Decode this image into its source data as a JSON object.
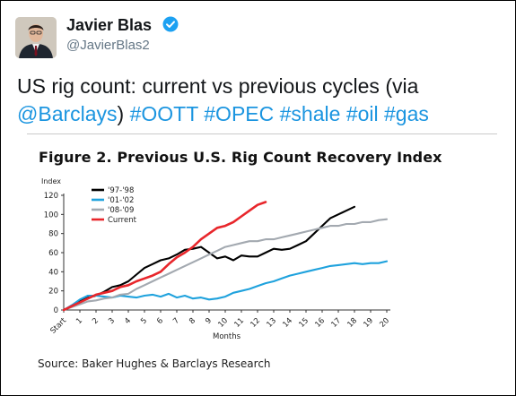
{
  "tweet": {
    "author_name": "Javier Blas",
    "author_handle": "@JavierBlas2",
    "text_plain": "US rig count: current vs previous cycles (via ",
    "mention": "@Barclays",
    "text_close": ")",
    "hashtags": [
      "#OOTT",
      "#OPEC",
      "#shale",
      "#oil",
      "#gas"
    ],
    "avatar_icon": "person-portrait-icon",
    "verified_icon": "verified-badge-icon",
    "link_color": "#1b95e0"
  },
  "figure": {
    "title": "Figure 2. Previous U.S. Rig Count Recovery Index",
    "source": "Source: Baker Hughes & Barclays Research"
  },
  "chart_data": {
    "type": "line",
    "ylabel": "Index",
    "xlabel": "Months",
    "ylim": [
      0,
      120
    ],
    "yticks": [
      0,
      20,
      40,
      60,
      80,
      100,
      120
    ],
    "xlim": [
      0,
      20
    ],
    "xticks": [
      "Start",
      "1",
      "2",
      "3",
      "4",
      "5",
      "6",
      "7",
      "8",
      "9",
      "10",
      "11",
      "12",
      "13",
      "14",
      "15",
      "16",
      "17",
      "18",
      "19",
      "20"
    ],
    "grid": false,
    "legend_position": "top-left",
    "series": [
      {
        "name": "'97-'98",
        "color": "#000000",
        "points": [
          [
            0,
            0
          ],
          [
            0.5,
            4
          ],
          [
            1,
            9
          ],
          [
            1.5,
            13
          ],
          [
            2,
            15
          ],
          [
            2.5,
            19
          ],
          [
            3,
            24
          ],
          [
            3.5,
            26
          ],
          [
            4,
            30
          ],
          [
            4.5,
            37
          ],
          [
            5,
            44
          ],
          [
            5.5,
            48
          ],
          [
            6,
            52
          ],
          [
            6.5,
            54
          ],
          [
            7,
            58
          ],
          [
            7.5,
            63
          ],
          [
            8,
            64
          ],
          [
            8.5,
            66
          ],
          [
            9,
            60
          ],
          [
            9.5,
            54
          ],
          [
            10,
            56
          ],
          [
            10.5,
            52
          ],
          [
            11,
            57
          ],
          [
            11.5,
            56
          ],
          [
            12,
            56
          ],
          [
            12.5,
            60
          ],
          [
            13,
            64
          ],
          [
            13.5,
            63
          ],
          [
            14,
            64
          ],
          [
            14.5,
            68
          ],
          [
            15,
            72
          ],
          [
            15.5,
            80
          ],
          [
            16,
            88
          ],
          [
            16.5,
            96
          ],
          [
            17,
            100
          ],
          [
            17.5,
            104
          ],
          [
            18,
            108
          ]
        ]
      },
      {
        "name": "'01-'02",
        "color": "#1fa2dd",
        "points": [
          [
            0,
            0
          ],
          [
            0.5,
            5
          ],
          [
            1,
            11
          ],
          [
            1.5,
            15
          ],
          [
            2,
            15
          ],
          [
            2.5,
            14
          ],
          [
            3,
            13
          ],
          [
            3.5,
            15
          ],
          [
            4,
            14
          ],
          [
            4.5,
            13
          ],
          [
            5,
            15
          ],
          [
            5.5,
            16
          ],
          [
            6,
            14
          ],
          [
            6.5,
            17
          ],
          [
            7,
            13
          ],
          [
            7.5,
            15
          ],
          [
            8,
            12
          ],
          [
            8.5,
            13
          ],
          [
            9,
            11
          ],
          [
            9.5,
            12
          ],
          [
            10,
            14
          ],
          [
            10.5,
            18
          ],
          [
            11,
            20
          ],
          [
            11.5,
            22
          ],
          [
            12,
            25
          ],
          [
            12.5,
            28
          ],
          [
            13,
            30
          ],
          [
            13.5,
            33
          ],
          [
            14,
            36
          ],
          [
            14.5,
            38
          ],
          [
            15,
            40
          ],
          [
            15.5,
            42
          ],
          [
            16,
            44
          ],
          [
            16.5,
            46
          ],
          [
            17,
            47
          ],
          [
            17.5,
            48
          ],
          [
            18,
            49
          ],
          [
            18.5,
            48
          ],
          [
            19,
            49
          ],
          [
            19.5,
            49
          ],
          [
            20,
            51
          ]
        ]
      },
      {
        "name": "'08-'09",
        "color": "#a3a9b0",
        "points": [
          [
            0,
            0
          ],
          [
            0.5,
            3
          ],
          [
            1,
            6
          ],
          [
            1.5,
            9
          ],
          [
            2,
            10
          ],
          [
            2.5,
            12
          ],
          [
            3,
            13
          ],
          [
            3.5,
            16
          ],
          [
            4,
            17
          ],
          [
            4.5,
            22
          ],
          [
            5,
            26
          ],
          [
            5.5,
            30
          ],
          [
            6,
            34
          ],
          [
            6.5,
            38
          ],
          [
            7,
            42
          ],
          [
            7.5,
            46
          ],
          [
            8,
            50
          ],
          [
            8.5,
            54
          ],
          [
            9,
            58
          ],
          [
            9.5,
            62
          ],
          [
            10,
            66
          ],
          [
            10.5,
            68
          ],
          [
            11,
            70
          ],
          [
            11.5,
            72
          ],
          [
            12,
            72
          ],
          [
            12.5,
            74
          ],
          [
            13,
            74
          ],
          [
            13.5,
            76
          ],
          [
            14,
            78
          ],
          [
            14.5,
            80
          ],
          [
            15,
            82
          ],
          [
            15.5,
            84
          ],
          [
            16,
            86
          ],
          [
            16.5,
            88
          ],
          [
            17,
            88
          ],
          [
            17.5,
            90
          ],
          [
            18,
            90
          ],
          [
            18.5,
            92
          ],
          [
            19,
            92
          ],
          [
            19.5,
            94
          ],
          [
            20,
            95
          ]
        ]
      },
      {
        "name": "Current",
        "color": "#e8262b",
        "points": [
          [
            0,
            0
          ],
          [
            0.5,
            4
          ],
          [
            1,
            8
          ],
          [
            1.5,
            12
          ],
          [
            2,
            16
          ],
          [
            2.5,
            18
          ],
          [
            3,
            20
          ],
          [
            3.5,
            24
          ],
          [
            4,
            26
          ],
          [
            4.5,
            30
          ],
          [
            5,
            33
          ],
          [
            5.5,
            36
          ],
          [
            6,
            40
          ],
          [
            6.5,
            48
          ],
          [
            7,
            55
          ],
          [
            7.5,
            60
          ],
          [
            8,
            66
          ],
          [
            8.5,
            74
          ],
          [
            9,
            80
          ],
          [
            9.5,
            86
          ],
          [
            10,
            88
          ],
          [
            10.5,
            92
          ],
          [
            11,
            98
          ],
          [
            11.5,
            104
          ],
          [
            12,
            110
          ],
          [
            12.5,
            113
          ]
        ]
      }
    ]
  }
}
